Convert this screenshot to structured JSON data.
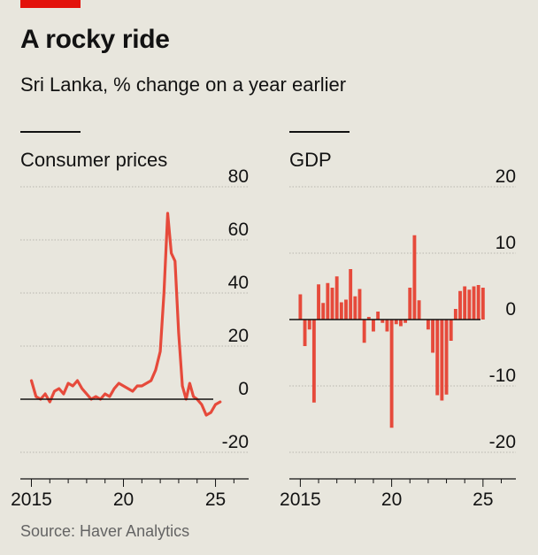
{
  "header": {
    "title": "A rocky ride",
    "subtitle": "Sri Lanka, % change on a year earlier"
  },
  "source": "Source: Haver Analytics",
  "colors": {
    "series": "#e64a3b",
    "accent": "#e3120b",
    "background": "#e8e6dd",
    "grid": "#b9b6ae"
  },
  "chart_data": [
    {
      "type": "line",
      "title": "Consumer prices",
      "ylim": [
        -20,
        80
      ],
      "yticks": [
        80,
        60,
        40,
        20,
        0,
        -20
      ],
      "ytick_labels": [
        "80",
        "60",
        "40",
        "20",
        "0",
        "-20"
      ],
      "xlim": [
        2014.4,
        2026.8
      ],
      "xticks": [
        2015,
        2020,
        2025
      ],
      "xtick_labels": [
        "2015",
        "20",
        "25"
      ],
      "grid": true,
      "series": [
        {
          "x": [
            2015.0,
            2015.25,
            2015.5,
            2015.75,
            2016.0,
            2016.25,
            2016.5,
            2016.75,
            2017.0,
            2017.25,
            2017.5,
            2017.75,
            2018.0,
            2018.25,
            2018.5,
            2018.75,
            2019.0,
            2019.25,
            2019.5,
            2019.75,
            2020.0,
            2020.25,
            2020.5,
            2020.75,
            2021.0,
            2021.25,
            2021.5,
            2021.75,
            2022.0,
            2022.2,
            2022.4,
            2022.6,
            2022.8,
            2023.0,
            2023.2,
            2023.4,
            2023.6,
            2023.8,
            2024.0,
            2024.25,
            2024.5,
            2024.75,
            2025.0,
            2025.25
          ],
          "values": [
            7,
            1,
            0,
            2,
            -1,
            3,
            4,
            2,
            6,
            5,
            7,
            4,
            2,
            0,
            1,
            0,
            2,
            1,
            4,
            6,
            5,
            4,
            3,
            5,
            5,
            6,
            7,
            11,
            18,
            40,
            70,
            55,
            52,
            25,
            5,
            0,
            6,
            1,
            0,
            -2,
            -6,
            -5,
            -2,
            -1
          ]
        }
      ]
    },
    {
      "type": "bar",
      "title": "GDP",
      "ylim": [
        -20,
        20
      ],
      "yticks": [
        20,
        10,
        0,
        -10,
        -20
      ],
      "ytick_labels": [
        "20",
        "10",
        "0",
        "-10",
        "-20"
      ],
      "xlim": [
        2014.4,
        2026.8
      ],
      "xticks": [
        2015,
        2020,
        2025
      ],
      "xtick_labels": [
        "2015",
        "20",
        "25"
      ],
      "grid": true,
      "series": [
        {
          "x": [
            2015.0,
            2015.25,
            2015.5,
            2015.75,
            2016.0,
            2016.25,
            2016.5,
            2016.75,
            2017.0,
            2017.25,
            2017.5,
            2017.75,
            2018.0,
            2018.25,
            2018.5,
            2018.75,
            2019.0,
            2019.25,
            2019.5,
            2019.75,
            2020.0,
            2020.25,
            2020.5,
            2020.75,
            2021.0,
            2021.25,
            2021.5,
            2021.75,
            2022.0,
            2022.25,
            2022.5,
            2022.75,
            2023.0,
            2023.25,
            2023.5,
            2023.75,
            2024.0,
            2024.25,
            2024.5,
            2024.75,
            2025.0
          ],
          "values": [
            3.8,
            -4.0,
            -1.5,
            -12.5,
            5.3,
            2.5,
            5.5,
            4.8,
            6.5,
            2.6,
            3.0,
            7.6,
            3.5,
            4.6,
            -3.5,
            0.4,
            -1.8,
            1.2,
            -0.5,
            -1.8,
            -16.3,
            -0.7,
            -1.0,
            -0.5,
            4.8,
            12.7,
            2.9,
            0,
            -1.5,
            -5.0,
            -11.4,
            -12.2,
            -11.3,
            -3.2,
            1.6,
            4.3,
            5.0,
            4.5,
            5.0,
            5.2,
            4.8
          ]
        }
      ]
    }
  ]
}
